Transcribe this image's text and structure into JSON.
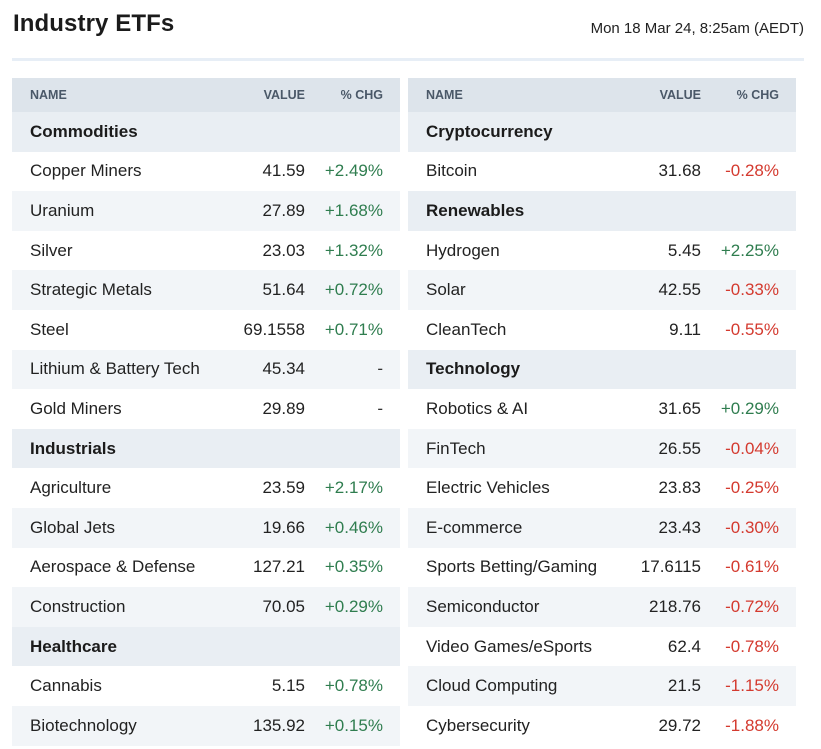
{
  "header": {
    "title": "Industry ETFs",
    "timestamp": "Mon 18 Mar 24, 8:25am (AEDT)"
  },
  "columns": {
    "name": "NAME",
    "value": "VALUE",
    "chg": "% CHG"
  },
  "left": [
    {
      "category": "Commodities"
    },
    {
      "name": "Copper Miners",
      "value": "41.59",
      "chg": "+2.49%",
      "dir": "pos"
    },
    {
      "name": "Uranium",
      "value": "27.89",
      "chg": "+1.68%",
      "dir": "pos"
    },
    {
      "name": "Silver",
      "value": "23.03",
      "chg": "+1.32%",
      "dir": "pos"
    },
    {
      "name": "Strategic Metals",
      "value": "51.64",
      "chg": "+0.72%",
      "dir": "pos"
    },
    {
      "name": "Steel",
      "value": "69.1558",
      "chg": "+0.71%",
      "dir": "pos"
    },
    {
      "name": "Lithium & Battery Tech",
      "value": "45.34",
      "chg": "-",
      "dir": "flat"
    },
    {
      "name": "Gold Miners",
      "value": "29.89",
      "chg": "-",
      "dir": "flat"
    },
    {
      "category": "Industrials"
    },
    {
      "name": "Agriculture",
      "value": "23.59",
      "chg": "+2.17%",
      "dir": "pos"
    },
    {
      "name": "Global Jets",
      "value": "19.66",
      "chg": "+0.46%",
      "dir": "pos"
    },
    {
      "name": "Aerospace & Defense",
      "value": "127.21",
      "chg": "+0.35%",
      "dir": "pos"
    },
    {
      "name": "Construction",
      "value": "70.05",
      "chg": "+0.29%",
      "dir": "pos"
    },
    {
      "category": "Healthcare"
    },
    {
      "name": "Cannabis",
      "value": "5.15",
      "chg": "+0.78%",
      "dir": "pos"
    },
    {
      "name": "Biotechnology",
      "value": "135.92",
      "chg": "+0.15%",
      "dir": "pos"
    }
  ],
  "right": [
    {
      "category": "Cryptocurrency"
    },
    {
      "name": "Bitcoin",
      "value": "31.68",
      "chg": "-0.28%",
      "dir": "neg"
    },
    {
      "category": "Renewables"
    },
    {
      "name": "Hydrogen",
      "value": "5.45",
      "chg": "+2.25%",
      "dir": "pos"
    },
    {
      "name": "Solar",
      "value": "42.55",
      "chg": "-0.33%",
      "dir": "neg"
    },
    {
      "name": "CleanTech",
      "value": "9.11",
      "chg": "-0.55%",
      "dir": "neg"
    },
    {
      "category": "Technology"
    },
    {
      "name": "Robotics & AI",
      "value": "31.65",
      "chg": "+0.29%",
      "dir": "pos"
    },
    {
      "name": "FinTech",
      "value": "26.55",
      "chg": "-0.04%",
      "dir": "neg"
    },
    {
      "name": "Electric Vehicles",
      "value": "23.83",
      "chg": "-0.25%",
      "dir": "neg"
    },
    {
      "name": "E-commerce",
      "value": "23.43",
      "chg": "-0.30%",
      "dir": "neg"
    },
    {
      "name": "Sports Betting/Gaming",
      "value": "17.6115",
      "chg": "-0.61%",
      "dir": "neg"
    },
    {
      "name": "Semiconductor",
      "value": "218.76",
      "chg": "-0.72%",
      "dir": "neg"
    },
    {
      "name": "Video Games/eSports",
      "value": "62.4",
      "chg": "-0.78%",
      "dir": "neg"
    },
    {
      "name": "Cloud Computing",
      "value": "21.5",
      "chg": "-1.15%",
      "dir": "neg"
    },
    {
      "name": "Cybersecurity",
      "value": "29.72",
      "chg": "-1.88%",
      "dir": "neg"
    }
  ]
}
